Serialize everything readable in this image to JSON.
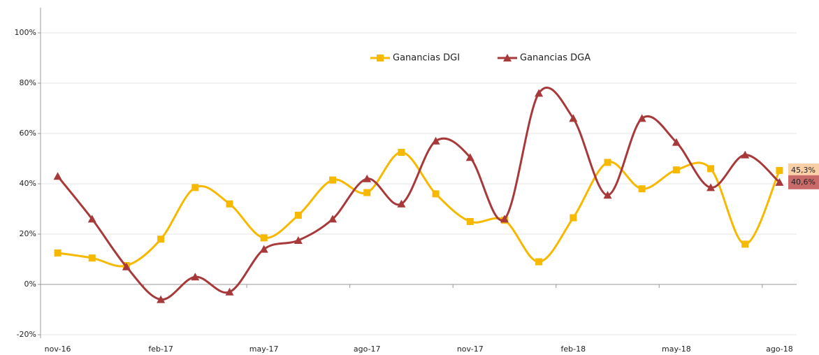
{
  "chart_data": {
    "type": "line",
    "categories": [
      "nov-16",
      null,
      null,
      "feb-17",
      null,
      null,
      "may-17",
      null,
      null,
      "ago-17",
      null,
      null,
      "nov-17",
      null,
      null,
      "feb-18",
      null,
      null,
      "may-18",
      null,
      null,
      "ago-18"
    ],
    "series": [
      {
        "name": "Ganancias DGI",
        "color": "#f7b800",
        "marker": "square",
        "values": [
          12.5,
          10.5,
          7.5,
          18,
          38.5,
          32,
          18.5,
          27.5,
          41.5,
          36.5,
          52.5,
          36,
          25,
          25.5,
          9,
          26.5,
          48.5,
          38,
          45.5,
          46,
          16,
          45.3
        ],
        "value_labels": [
          null,
          null,
          null,
          null,
          null,
          null,
          null,
          null,
          null,
          null,
          null,
          null,
          null,
          null,
          null,
          null,
          null,
          null,
          null,
          null,
          null,
          "45,3%"
        ],
        "label_color": "#f9cfa8"
      },
      {
        "name": "Ganancias DGA",
        "color": "#a8393a",
        "marker": "triangle",
        "values": [
          43,
          26,
          7,
          -6,
          3,
          -3,
          14,
          17.5,
          26,
          42,
          32,
          57,
          50.5,
          26,
          76,
          66,
          35.5,
          66,
          56.5,
          38.5,
          51.5,
          40.6
        ],
        "value_labels": [
          null,
          null,
          null,
          null,
          null,
          null,
          null,
          null,
          null,
          null,
          null,
          null,
          null,
          null,
          null,
          null,
          null,
          null,
          null,
          null,
          null,
          "40,6%"
        ],
        "label_color": "#c96b6b"
      }
    ],
    "ylim": [
      -20,
      110
    ],
    "yticks": [
      {
        "value": -20,
        "label": "-20%"
      },
      {
        "value": 0,
        "label": "0%"
      },
      {
        "value": 20,
        "label": "20%"
      },
      {
        "value": 40,
        "label": "40%"
      },
      {
        "value": 60,
        "label": "60%"
      },
      {
        "value": 80,
        "label": "80%"
      },
      {
        "value": 100,
        "label": "100%"
      }
    ],
    "grid": true,
    "smooth": true,
    "legend": "top"
  }
}
